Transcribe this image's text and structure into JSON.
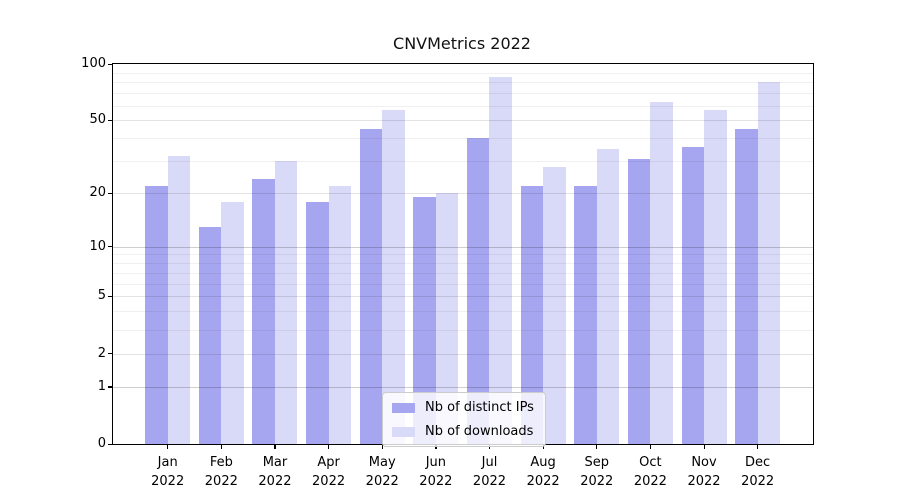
{
  "chart_data": {
    "type": "bar",
    "title": "CNVMetrics 2022",
    "x_categories": [
      "Jan",
      "Feb",
      "Mar",
      "Apr",
      "May",
      "Jun",
      "Jul",
      "Aug",
      "Sep",
      "Oct",
      "Nov",
      "Dec"
    ],
    "x_year_suffix": "2022",
    "series": [
      {
        "name": "Nb of distinct IPs",
        "color": "#a6a6f0",
        "values": [
          22,
          13,
          24,
          18,
          45,
          19,
          40,
          22,
          22,
          31,
          36,
          45
        ]
      },
      {
        "name": "Nb of downloads",
        "color": "#d9d9f8",
        "values": [
          32,
          18,
          30,
          22,
          57,
          20,
          85,
          28,
          35,
          63,
          57,
          80
        ]
      }
    ],
    "y_axis": {
      "scale": "log10(value+1)",
      "ticks": [
        0,
        1,
        2,
        5,
        10,
        20,
        50,
        100
      ],
      "minor_gridlines": [
        3,
        4,
        6,
        7,
        8,
        9,
        30,
        40,
        60,
        70,
        80,
        90
      ],
      "lim": [
        0,
        100
      ]
    },
    "grid": true,
    "legend_position": "lower center",
    "background_color": "#ffffff",
    "axis_color": "#000000"
  }
}
